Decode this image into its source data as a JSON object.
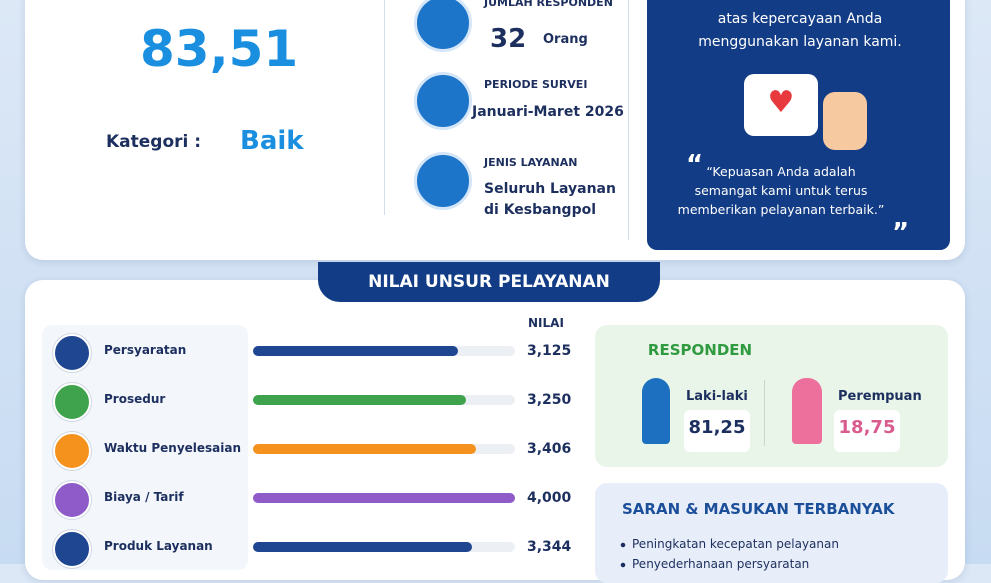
{
  "score": {
    "value": "83,51",
    "category_label": "Kategori :",
    "category": "Baik"
  },
  "info": [
    {
      "label": "JUMLAH RESPONDEN",
      "value": "32",
      "unit": "Orang"
    },
    {
      "label": "PERIODE SURVEI",
      "value": "Januari-Maret 2026"
    },
    {
      "label": "JENIS LAYANAN",
      "value": "Seluruh Layanan di Kesbangpol"
    }
  ],
  "thanks": {
    "text": "atas kepercayaan Anda menggunakan layanan kami.",
    "quote": "“Kepuasan Anda adalah semangat kami untuk terus memberikan pelayanan terbaik.”"
  },
  "unsur": {
    "title": "NILAI UNSUR PELAYANAN",
    "column": "NILAI",
    "xlim": [
      0,
      4
    ],
    "rows": [
      {
        "name": "Persyaratan",
        "value": 3.125,
        "label": "3,125",
        "color": "#1f4690"
      },
      {
        "name": "Prosedur",
        "value": 3.25,
        "label": "3,250",
        "color": "#3fa34d"
      },
      {
        "name": "Waktu Penyelesaian",
        "value": 3.406,
        "label": "3,406",
        "color": "#f5921e"
      },
      {
        "name": "Biaya / Tarif",
        "value": 4,
        "label": "4,000",
        "color": "#8e5bc8"
      },
      {
        "name": "Produk Layanan",
        "value": 3.344,
        "label": "3,344",
        "color": "#1f4690"
      }
    ]
  },
  "responden": {
    "title": "RESPONDEN",
    "male": {
      "label": "Laki-laki",
      "value": "81,25"
    },
    "female": {
      "label": "Perempuan",
      "value": "18,75"
    }
  },
  "saran": {
    "title": "SARAN & MASUKAN TERBANYAK",
    "items": [
      "Peningkatan kecepatan pelayanan",
      "Penyederhanaan persyaratan"
    ]
  }
}
